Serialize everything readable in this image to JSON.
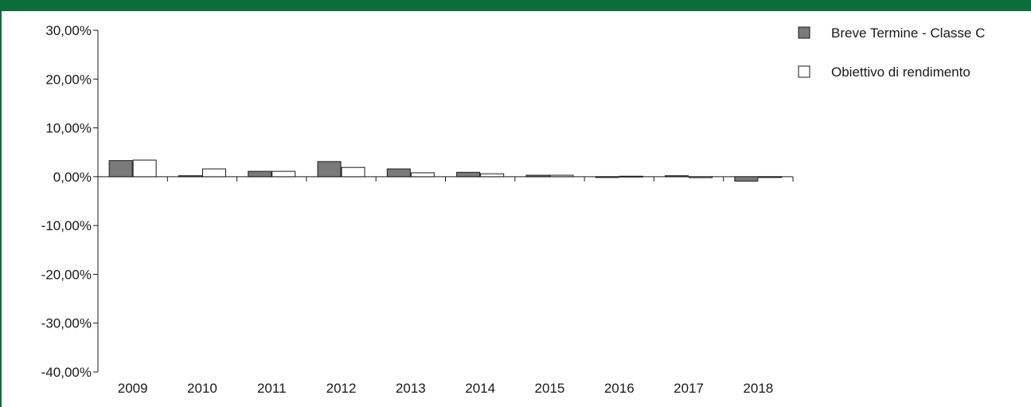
{
  "header": {
    "title": ""
  },
  "colors": {
    "brand": "#0b6e3a",
    "series1": "#7a7a7a",
    "series2": "#ffffff",
    "stroke": "#1a1a1a"
  },
  "chart_data": {
    "type": "bar",
    "title": "",
    "xlabel": "",
    "ylabel": "",
    "categories": [
      "2009",
      "2010",
      "2011",
      "2012",
      "2013",
      "2014",
      "2015",
      "2016",
      "2017",
      "2018"
    ],
    "series": [
      {
        "name": "Breve Termine - Classe C",
        "values": [
          3.3,
          0.2,
          1.1,
          3.1,
          1.6,
          0.9,
          0.3,
          -0.1,
          0.2,
          -0.9
        ]
      },
      {
        "name": "Obiettivo di rendimento",
        "values": [
          3.4,
          1.6,
          1.1,
          1.9,
          0.8,
          0.6,
          0.3,
          0.1,
          -0.2,
          -0.1
        ]
      }
    ],
    "ylim": [
      -40,
      30
    ],
    "yticks": [
      "30,00%",
      "20,00%",
      "10,00%",
      "0,00%",
      "-10,00%",
      "-20,00%",
      "-30,00%",
      "-40,00%"
    ],
    "ytick_values": [
      30,
      20,
      10,
      0,
      -10,
      -20,
      -30,
      -40
    ],
    "legend": "top-right",
    "grid": false
  }
}
